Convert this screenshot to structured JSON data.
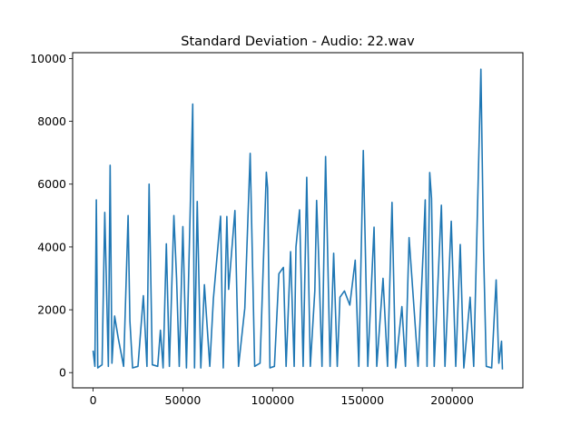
{
  "chart_data": {
    "type": "line",
    "title": "Standard Deviation - Audio: 22.wav",
    "xlabel": "",
    "ylabel": "",
    "xlim": [
      -11400,
      239400
    ],
    "ylim": [
      -485,
      10185
    ],
    "x_ticks": [
      0,
      50000,
      100000,
      150000,
      200000
    ],
    "x_tick_labels": [
      "0",
      "50000",
      "100000",
      "150000",
      "200000"
    ],
    "y_ticks": [
      0,
      2000,
      4000,
      6000,
      8000,
      10000
    ],
    "y_tick_labels": [
      "0",
      "2000",
      "4000",
      "6000",
      "8000",
      "10000"
    ],
    "grid": false,
    "legend": "none",
    "series": [
      {
        "color": "#1f77b4",
        "x": [
          0,
          1000,
          1800,
          2600,
          5000,
          6500,
          8500,
          9500,
          10500,
          12000,
          14000,
          17000,
          19500,
          20500,
          22000,
          25000,
          28000,
          30000,
          31200,
          33000,
          36000,
          37500,
          39000,
          40800,
          42500,
          45000,
          46500,
          48000,
          50000,
          52000,
          55500,
          56500,
          58000,
          60000,
          62000,
          65000,
          67000,
          71000,
          72500,
          74500,
          75500,
          79000,
          81000,
          84500,
          87500,
          90000,
          93000,
          96500,
          97200,
          98500,
          101000,
          103500,
          106000,
          107500,
          110000,
          112000,
          113000,
          115000,
          117000,
          119000,
          121000,
          123500,
          124500,
          125500,
          127500,
          129500,
          132000,
          134000,
          136000,
          137500,
          140000,
          143000,
          146000,
          148000,
          150500,
          153000,
          156500,
          158000,
          161500,
          164000,
          166500,
          168500,
          172000,
          174000,
          176000,
          179000,
          181000,
          184000,
          185000,
          186000,
          187500,
          188500,
          190000,
          194000,
          196000,
          199500,
          202000,
          204500,
          206500,
          210000,
          212000,
          216000,
          217500,
          219000,
          222000,
          224500,
          226000,
          227500,
          228000
        ],
        "y": [
          700,
          200,
          5500,
          150,
          250,
          5100,
          200,
          6600,
          300,
          1800,
          1100,
          200,
          5000,
          1650,
          150,
          200,
          2450,
          200,
          6000,
          250,
          200,
          1350,
          150,
          4100,
          200,
          5000,
          3000,
          200,
          4650,
          150,
          8550,
          150,
          5450,
          150,
          2800,
          200,
          2350,
          4980,
          150,
          4970,
          2650,
          5160,
          200,
          2050,
          6980,
          200,
          300,
          6380,
          5880,
          150,
          200,
          3150,
          3350,
          200,
          3850,
          200,
          4000,
          5180,
          200,
          6220,
          200,
          2600,
          5480,
          3900,
          200,
          6880,
          200,
          3800,
          200,
          2400,
          2600,
          2150,
          3580,
          200,
          7070,
          200,
          4630,
          200,
          3000,
          200,
          5420,
          150,
          2100,
          200,
          4300,
          1850,
          200,
          4050,
          5500,
          200,
          6370,
          5550,
          200,
          5330,
          200,
          4820,
          200,
          4080,
          150,
          2400,
          200,
          9660,
          3900,
          200,
          150,
          2950,
          300,
          1000,
          100
        ]
      }
    ]
  }
}
